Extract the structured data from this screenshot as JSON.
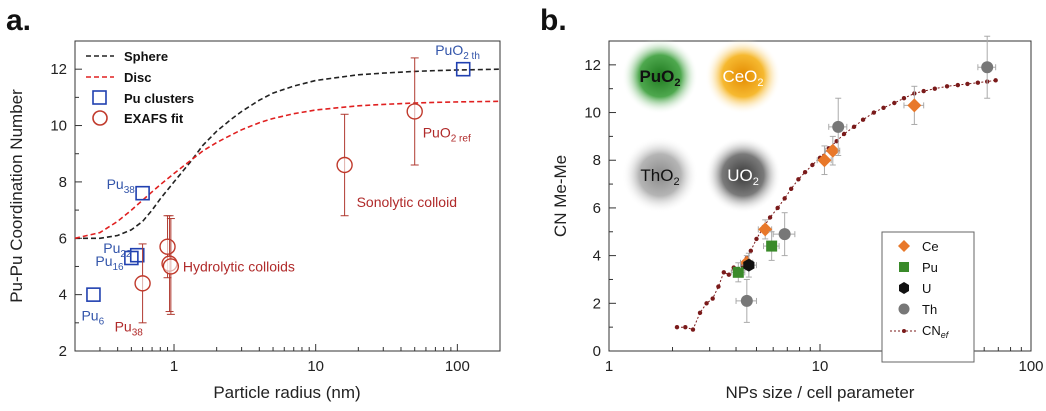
{
  "panels": {
    "a_label": "a.",
    "b_label": "b."
  },
  "chart_data": [
    {
      "type": "line",
      "x_scale": "log",
      "xlabel": "Particle radius (nm)",
      "ylabel": "Pu-Pu Coordination Number",
      "xlim": [
        0.2,
        200
      ],
      "ylim": [
        2,
        13
      ],
      "x_ticks": [
        "1",
        "10",
        "100"
      ],
      "y_ticks": [
        "2",
        "4",
        "6",
        "8",
        "10",
        "12"
      ],
      "legend": {
        "position": "top-left",
        "entries": [
          "Sphere",
          "Disc",
          "Pu clusters",
          "EXAFS fit"
        ]
      },
      "series": [
        {
          "name": "Sphere",
          "style": "black-dashed",
          "x": [
            0.2,
            0.3,
            0.4,
            0.5,
            0.6,
            0.7,
            0.8,
            1,
            1.3,
            1.6,
            2,
            2.5,
            3,
            4,
            5,
            7,
            10,
            15,
            20,
            30,
            50,
            70,
            100,
            200
          ],
          "y": [
            6.0,
            6.0,
            6.1,
            6.3,
            6.6,
            7.0,
            7.4,
            8.0,
            8.7,
            9.3,
            9.8,
            10.2,
            10.5,
            10.9,
            11.15,
            11.4,
            11.6,
            11.72,
            11.8,
            11.86,
            11.92,
            11.95,
            11.97,
            12.0
          ]
        },
        {
          "name": "Disc",
          "style": "red-dashed",
          "x": [
            0.2,
            0.3,
            0.4,
            0.5,
            0.6,
            0.7,
            0.8,
            1,
            1.3,
            1.6,
            2,
            2.5,
            3,
            4,
            5,
            7,
            10,
            15,
            20,
            30,
            50,
            70,
            100,
            200
          ],
          "y": [
            6.0,
            6.2,
            6.6,
            7.0,
            7.35,
            7.65,
            7.9,
            8.3,
            8.75,
            9.1,
            9.4,
            9.65,
            9.85,
            10.1,
            10.25,
            10.42,
            10.55,
            10.64,
            10.7,
            10.75,
            10.8,
            10.82,
            10.84,
            10.86
          ]
        },
        {
          "name": "Pu clusters",
          "style": "blue-open-square",
          "points": [
            {
              "x": 0.27,
              "y": 4.0,
              "label": "Pu",
              "sub": "6"
            },
            {
              "x": 0.5,
              "y": 5.3,
              "label": "Pu",
              "sub": "16"
            },
            {
              "x": 0.55,
              "y": 5.4,
              "label": "Pu",
              "sub": "22"
            },
            {
              "x": 0.6,
              "y": 7.6,
              "label": "Pu",
              "sub": "38"
            },
            {
              "x": 110,
              "y": 12.0,
              "label": "PuO",
              "sub": "2 th"
            }
          ]
        },
        {
          "name": "EXAFS fit",
          "style": "red-open-circle",
          "points": [
            {
              "x": 0.6,
              "y": 4.4,
              "err": 1.4
            },
            {
              "x": 0.9,
              "y": 5.7,
              "err": 1.1
            },
            {
              "x": 0.93,
              "y": 5.1,
              "err": 1.7
            },
            {
              "x": 0.95,
              "y": 5.0,
              "err": 1.7
            },
            {
              "x": 16,
              "y": 8.6,
              "err": 1.8
            },
            {
              "x": 50,
              "y": 10.5,
              "err": 1.9
            }
          ]
        }
      ],
      "annotations": [
        {
          "text": "Pu",
          "sub": "38",
          "color": "red"
        },
        {
          "text": "Hydrolytic colloids",
          "color": "red"
        },
        {
          "text": "Sonolytic colloid",
          "color": "red"
        },
        {
          "text": "PuO",
          "sub": "2 ref",
          "color": "red"
        }
      ]
    },
    {
      "type": "scatter",
      "x_scale": "log",
      "xlabel": "NPs size / cell parameter",
      "ylabel": "CN Me-Me",
      "xlim": [
        1,
        100
      ],
      "ylim": [
        0,
        13
      ],
      "x_ticks": [
        "1",
        "10",
        "100"
      ],
      "y_ticks": [
        "0",
        "2",
        "4",
        "6",
        "8",
        "10",
        "12"
      ],
      "legend": {
        "position": "bottom-right",
        "entries": [
          "Ce",
          "Pu",
          "U",
          "Th",
          "CN_ef"
        ]
      },
      "inset_labels": [
        {
          "text": "PuO",
          "sub": "2",
          "color": "#3a9a3a"
        },
        {
          "text": "CeO",
          "sub": "2",
          "color": "#f0a020"
        },
        {
          "text": "ThO",
          "sub": "2",
          "color": "#999999"
        },
        {
          "text": "UO",
          "sub": "2",
          "color": "#555555"
        }
      ],
      "series": [
        {
          "name": "Ce",
          "marker": "diamond",
          "color": "#e8782a",
          "points": [
            {
              "x": 4.5,
              "y": 3.7,
              "xerr": 0.3,
              "yerr": 0.3
            },
            {
              "x": 5.5,
              "y": 5.1,
              "xerr": 0.4,
              "yerr": 0.4
            },
            {
              "x": 10.5,
              "y": 8.0,
              "xerr": 0.8,
              "yerr": 0.6
            },
            {
              "x": 11.5,
              "y": 8.4,
              "xerr": 0.9,
              "yerr": 0.6
            },
            {
              "x": 28,
              "y": 10.3,
              "xerr": 3.0,
              "yerr": 0.8
            }
          ]
        },
        {
          "name": "Pu",
          "marker": "square",
          "color": "#3a8a2a",
          "points": [
            {
              "x": 4.1,
              "y": 3.3,
              "xerr": 0.3,
              "yerr": 0.4
            },
            {
              "x": 5.9,
              "y": 4.4,
              "xerr": 0.5,
              "yerr": 0.6
            }
          ]
        },
        {
          "name": "U",
          "marker": "hexagon",
          "color": "#111111",
          "points": [
            {
              "x": 4.6,
              "y": 3.6,
              "xerr": 0.4,
              "yerr": 0.5
            }
          ]
        },
        {
          "name": "Th",
          "marker": "circle",
          "color": "#777777",
          "points": [
            {
              "x": 4.5,
              "y": 2.1,
              "xerr": 0.5,
              "yerr": 0.9
            },
            {
              "x": 6.8,
              "y": 4.9,
              "xerr": 0.8,
              "yerr": 0.9
            },
            {
              "x": 12.2,
              "y": 9.4,
              "xerr": 1.2,
              "yerr": 1.2
            },
            {
              "x": 62,
              "y": 11.9,
              "xerr": 6,
              "yerr": 1.3
            }
          ]
        },
        {
          "name": "CN_ef",
          "style": "dotted-line-with-dots",
          "color": "#7a1a1a",
          "x": [
            2.1,
            2.3,
            2.5,
            2.7,
            2.9,
            3.1,
            3.3,
            3.5,
            3.7,
            3.9,
            4.1,
            4.3,
            4.5,
            4.7,
            5.0,
            5.4,
            5.8,
            6.3,
            6.8,
            7.3,
            7.9,
            8.5,
            9.2,
            10,
            11,
            12,
            13,
            14.5,
            16,
            18,
            20,
            22.5,
            25,
            28,
            31,
            35,
            40,
            45,
            50,
            56,
            62,
            68
          ],
          "y": [
            1.0,
            1.0,
            0.9,
            1.6,
            2.0,
            2.2,
            2.7,
            3.3,
            3.2,
            3.5,
            3.3,
            3.6,
            3.9,
            4.2,
            4.7,
            5.2,
            5.6,
            6.0,
            6.4,
            6.8,
            7.2,
            7.5,
            7.8,
            8.1,
            8.5,
            8.8,
            9.1,
            9.4,
            9.7,
            10.0,
            10.2,
            10.4,
            10.6,
            10.8,
            10.9,
            11.0,
            11.1,
            11.15,
            11.2,
            11.25,
            11.3,
            11.35
          ]
        }
      ]
    }
  ]
}
